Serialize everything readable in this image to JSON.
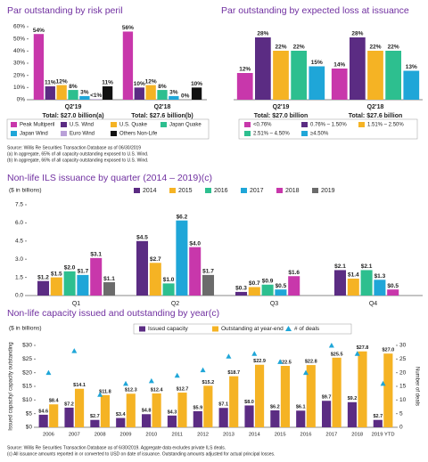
{
  "chart_data": [
    {
      "type": "bar",
      "title": "Par outstanding by risk peril",
      "categories": [
        "Q2'19",
        "Q2'18"
      ],
      "subtitles": [
        "Total: $27.0 billion(a)",
        "Total: $27.6 billion(b)"
      ],
      "ylim": [
        0,
        60
      ],
      "yticks": [
        {
          "value": 0,
          "label": "0%"
        },
        {
          "value": 10,
          "label": "10%"
        },
        {
          "value": 20,
          "label": "20%"
        },
        {
          "value": 30,
          "label": "30%"
        },
        {
          "value": 40,
          "label": "40%"
        },
        {
          "value": 50,
          "label": "50%"
        },
        {
          "value": 60,
          "label": "60%"
        }
      ],
      "series": [
        {
          "name": "Peak Multiperil",
          "color": "#c837ab",
          "values": [
            54,
            56
          ],
          "value_labels": [
            "54%",
            "56%"
          ]
        },
        {
          "name": "U.S. Wind",
          "color": "#5b2c83",
          "values": [
            11,
            10
          ],
          "value_labels": [
            "11%",
            "10%"
          ]
        },
        {
          "name": "U.S. Quake",
          "color": "#f5b324",
          "values": [
            12,
            12
          ],
          "value_labels": [
            "12%",
            "12%"
          ]
        },
        {
          "name": "Japan Quake",
          "color": "#2dbf8f",
          "values": [
            8,
            8
          ],
          "value_labels": [
            "8%",
            "8%"
          ]
        },
        {
          "name": "Japan Wind",
          "color": "#1fa6d8",
          "values": [
            3,
            3
          ],
          "value_labels": [
            "3%",
            "3%"
          ]
        },
        {
          "name": "Euro Wind",
          "color": "#b9a0d8",
          "values": [
            0.5,
            0
          ],
          "value_labels": [
            "<1%",
            "0%"
          ]
        },
        {
          "name": "Others Non-Life",
          "color": "#111111",
          "values": [
            11,
            10
          ],
          "value_labels": [
            "11%",
            "10%"
          ]
        }
      ],
      "notes": [
        "Source: Willis Re Securities Transaction Database as of 06/30/2019",
        "(a) In aggregate, 65% of all capacity outstanding exposed to U.S. Wind.",
        "(b) In aggregate, 66% of all capacity outstanding exposed to U.S. Wind."
      ]
    },
    {
      "type": "bar",
      "title": "Par outstanding by expected loss at issuance",
      "categories": [
        "Q2'19",
        "Q2'18"
      ],
      "subtitles": [
        "Total: $27.0 billion",
        "Total: $27.6 billion"
      ],
      "series": [
        {
          "name": "<0.76%",
          "color": "#c837ab",
          "values": [
            12,
            14
          ],
          "value_labels": [
            "12%",
            "14%"
          ]
        },
        {
          "name": "0.76% – 1.50%",
          "color": "#5b2c83",
          "values": [
            28,
            28
          ],
          "value_labels": [
            "28%",
            "28%"
          ]
        },
        {
          "name": "1.51% – 2.50%",
          "color": "#f5b324",
          "values": [
            22,
            22
          ],
          "value_labels": [
            "22%",
            "22%"
          ]
        },
        {
          "name": "2.51% – 4.50%",
          "color": "#2dbf8f",
          "values": [
            22,
            22
          ],
          "value_labels": [
            "22%",
            "22%"
          ]
        },
        {
          "name": "≥4.50%",
          "color": "#1fa6d8",
          "values": [
            15,
            13
          ],
          "value_labels": [
            "15%",
            "13%"
          ]
        }
      ]
    },
    {
      "type": "bar",
      "title": "Non-life ILS issuance by quarter (2014 – 2019)(c)",
      "subtitle": "($ in billions)",
      "categories": [
        "Q1",
        "Q2",
        "Q3",
        "Q4"
      ],
      "ylim": [
        0,
        7.5
      ],
      "yticks": [
        {
          "value": 0,
          "label": "0.0"
        },
        1.5,
        {
          "value": 3,
          "label": "3.0"
        },
        4.5,
        {
          "value": 6,
          "label": "6.0"
        },
        7.5
      ],
      "series": [
        {
          "name": "2014",
          "color": "#5b2c83",
          "values": [
            1.2,
            4.5,
            0.3,
            2.1
          ],
          "value_labels": [
            "$1.2",
            "$4.5",
            "$0.3",
            "$2.1"
          ]
        },
        {
          "name": "2015",
          "color": "#f5b324",
          "values": [
            1.5,
            2.7,
            0.7,
            1.4
          ],
          "value_labels": [
            "$1.5",
            "$2.7",
            "$0.7",
            "$1.4"
          ]
        },
        {
          "name": "2016",
          "color": "#2dbf8f",
          "values": [
            2.0,
            1.0,
            0.9,
            2.1
          ],
          "value_labels": [
            "$2.0",
            "$1.0",
            "$0.9",
            "$2.1"
          ]
        },
        {
          "name": "2017",
          "color": "#1fa6d8",
          "values": [
            1.7,
            6.2,
            0.5,
            1.3
          ],
          "value_labels": [
            "$1.7",
            "$6.2",
            "$0.5",
            "$1.3"
          ]
        },
        {
          "name": "2018",
          "color": "#c837ab",
          "values": [
            3.1,
            4.0,
            1.6,
            0.5
          ],
          "value_labels": [
            "$3.1",
            "$4.0",
            "$1.6",
            "$0.5"
          ]
        },
        {
          "name": "2019",
          "color": "#6b6b6b",
          "values": [
            1.1,
            1.7,
            null,
            null
          ],
          "value_labels": [
            "$1.1",
            "$1.7",
            null,
            null
          ]
        }
      ]
    },
    {
      "type": "bar",
      "title": "Non-life capacity issued and outstanding by year(c)",
      "subtitle": "($ in billions)",
      "y_label": "Issued capacity/ capacity outstanding",
      "y2_label": "Number of deals",
      "categories": [
        "2006",
        "2007",
        "2008",
        "2009",
        "2010",
        "2011",
        "2012",
        "2013",
        "2014",
        "2015",
        "2016",
        "2017",
        "2018",
        "2019 YTD"
      ],
      "ylim": [
        0,
        30
      ],
      "yticks": [
        {
          "value": 0,
          "label": "$0"
        },
        {
          "value": 5,
          "label": "$5"
        },
        {
          "value": 10,
          "label": "$10"
        },
        {
          "value": 15,
          "label": "$15"
        },
        {
          "value": 20,
          "label": "$20"
        },
        {
          "value": 25,
          "label": "$25"
        },
        {
          "value": 30,
          "label": "$30"
        }
      ],
      "y2lim": [
        0,
        30
      ],
      "y2ticks": [
        0,
        5,
        10,
        15,
        20,
        25,
        30
      ],
      "series": [
        {
          "name": "Issued capacity",
          "color": "#5b2c83",
          "values": [
            4.6,
            7.2,
            2.7,
            3.4,
            4.8,
            4.3,
            5.9,
            7.1,
            8.0,
            6.2,
            6.1,
            9.7,
            9.2,
            2.7
          ],
          "value_labels": [
            "$4.6",
            "$7.2",
            "$2.7",
            "$3.4",
            "$4.8",
            "$4.3",
            "$5.9",
            "$7.1",
            "$8.0",
            "$6.2",
            "$6.1",
            "$9.7",
            "$9.2",
            "$2.7"
          ]
        },
        {
          "name": "Outstanding at year-end",
          "color": "#f5b324",
          "values": [
            8.4,
            14.1,
            11.8,
            12.3,
            12.4,
            12.7,
            15.2,
            18.7,
            22.9,
            22.5,
            22.8,
            25.5,
            27.8,
            27.0
          ],
          "value_labels": [
            "$8.4",
            "$14.1",
            "$11.8",
            "$12.3",
            "$12.4",
            "$12.7",
            "$15.2",
            "$18.7",
            "$22.9",
            "$22.5",
            "$22.8",
            "$25.5",
            "$27.8",
            "$27.0"
          ]
        },
        {
          "name": "# of deals",
          "color": "#1fa6d8",
          "axis": "y2",
          "marker": "triangle",
          "values": [
            20,
            28,
            12,
            16,
            17,
            19,
            21,
            26,
            27,
            24,
            20,
            30,
            27,
            16
          ]
        }
      ],
      "notes": [
        "Source: Willis Re Securities Transaction Database as of 6/30/2019. Aggregate data excludes private ILS deals.",
        "(c) All issuance amounts reported in or converted to USD on date of issuance. Outstanding amounts adjusted for actual principal losses."
      ]
    }
  ]
}
